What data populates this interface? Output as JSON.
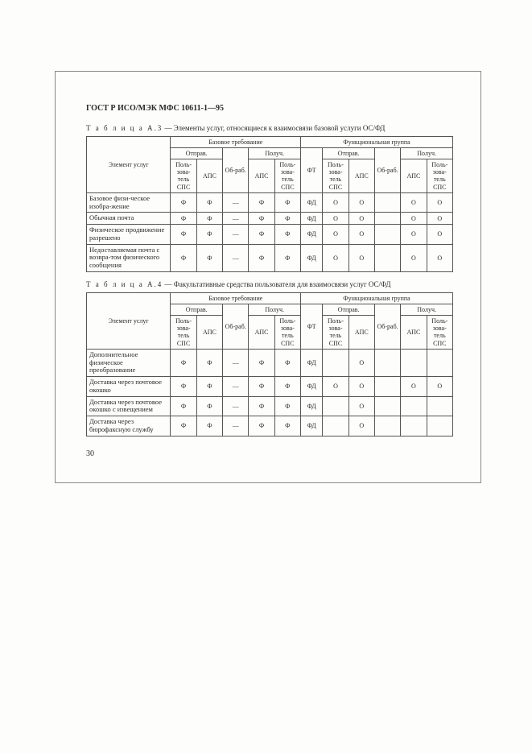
{
  "doc_header": "ГОСТ Р ИСО/МЭК МФС 10611-1—95",
  "page_number": "30",
  "captions": {
    "a3_prefix": "Т а б л и ц а  А.3",
    "a3_text": " — Элементы услуг, относящиеся к взаимосвязи базовой услуги ОС/ФД",
    "a4_prefix": "Т а б л и ц а  А.4",
    "a4_text": " — Факультативные средства пользователя для взаимосвязи услуг ОС/ФД"
  },
  "headers": {
    "element": "Элемент услуг",
    "basic_req": "Базовое требование",
    "func_group": "Функциональная группа",
    "send": "Отправ.",
    "recv": "Получ.",
    "obrab": "Об-раб.",
    "ft": "ФТ",
    "user_sps": "Поль-зова-тель СПС",
    "aps": "АПС"
  },
  "tableA3": {
    "rows": [
      {
        "label": "Базовое физи-ческое изобра-жение",
        "cells": [
          "Ф",
          "Ф",
          "—",
          "Ф",
          "Ф",
          "ФД",
          "О",
          "О",
          "",
          "О",
          "О"
        ]
      },
      {
        "label": "Обычная почта",
        "cells": [
          "Ф",
          "Ф",
          "—",
          "Ф",
          "Ф",
          "ФД",
          "О",
          "О",
          "",
          "О",
          "О"
        ]
      },
      {
        "label": "Физическое продвижение разрешено",
        "cells": [
          "Ф",
          "Ф",
          "—",
          "Ф",
          "Ф",
          "ФД",
          "О",
          "О",
          "",
          "О",
          "О"
        ]
      },
      {
        "label": "Недоставляемая почта с возвра-том физического сообщения",
        "cells": [
          "Ф",
          "Ф",
          "—",
          "Ф",
          "Ф",
          "ФД",
          "О",
          "О",
          "",
          "О",
          "О"
        ]
      }
    ]
  },
  "tableA4": {
    "rows": [
      {
        "label": "Дополнительное физическое преобразование",
        "cells": [
          "Ф",
          "Ф",
          "—",
          "Ф",
          "Ф",
          "ФД",
          "",
          "О",
          "",
          "",
          ""
        ]
      },
      {
        "label": "Доставка через почтовое окошко",
        "cells": [
          "Ф",
          "Ф",
          "—",
          "Ф",
          "Ф",
          "ФД",
          "О",
          "О",
          "",
          "О",
          "О"
        ]
      },
      {
        "label": "Доставка через почтовое окошко с извещением",
        "cells": [
          "Ф",
          "Ф",
          "—",
          "Ф",
          "Ф",
          "ФД",
          "",
          "О",
          "",
          "",
          ""
        ]
      },
      {
        "label": "Доставка через бюрофаксную службу",
        "cells": [
          "Ф",
          "Ф",
          "—",
          "Ф",
          "Ф",
          "ФД",
          "",
          "О",
          "",
          "",
          ""
        ]
      }
    ]
  }
}
